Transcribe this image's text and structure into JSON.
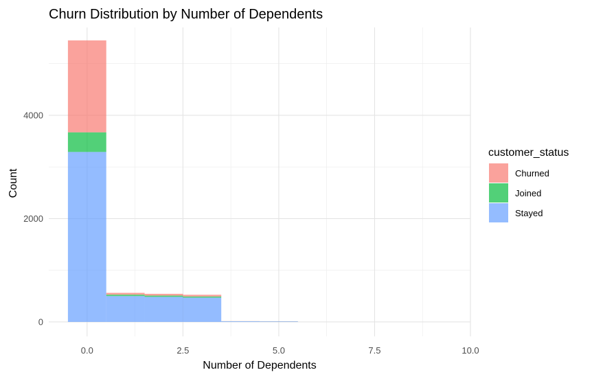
{
  "chart_data": {
    "type": "bar",
    "title": "Churn Distribution by Number of Dependents",
    "xlabel": "Number of Dependents",
    "ylabel": "Count",
    "xlim": [
      -1.0,
      10.0
    ],
    "ylim": [
      -280,
      5700
    ],
    "x_ticks": [
      {
        "value": 0,
        "label": "0.0"
      },
      {
        "value": 2.5,
        "label": "2.5"
      },
      {
        "value": 5,
        "label": "5.0"
      },
      {
        "value": 7.5,
        "label": "7.5"
      },
      {
        "value": 10,
        "label": "10.0"
      }
    ],
    "y_ticks": [
      {
        "value": 0,
        "label": "0"
      },
      {
        "value": 2000,
        "label": "2000"
      },
      {
        "value": 4000,
        "label": "4000"
      }
    ],
    "x_minor_grid": [
      1.25,
      3.75,
      6.25,
      8.75
    ],
    "y_minor_grid": [
      1000,
      3000,
      5000
    ],
    "grid": true,
    "stacked": true,
    "bin_width": 1,
    "categories": [
      0,
      1,
      2,
      3,
      4,
      5
    ],
    "legend": {
      "title": "customer_status",
      "position": "right"
    },
    "series": [
      {
        "name": "Stayed",
        "color": "#619CFF",
        "values": [
          3290,
          500,
          485,
          470,
          12,
          10
        ]
      },
      {
        "name": "Joined",
        "color": "#00BA38",
        "values": [
          380,
          28,
          25,
          22,
          1,
          1
        ]
      },
      {
        "name": "Churned",
        "color": "#F8766D",
        "values": [
          1780,
          35,
          34,
          34,
          2,
          2
        ]
      }
    ]
  }
}
